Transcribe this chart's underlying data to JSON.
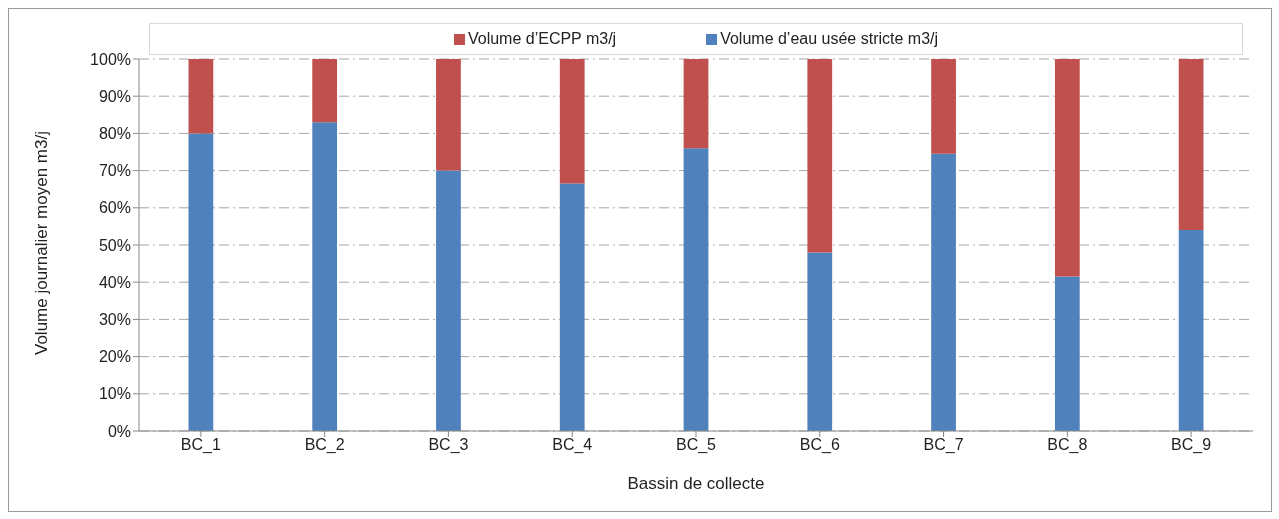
{
  "chart_data": {
    "type": "bar",
    "stacked": true,
    "xlabel": "Bassin de collecte",
    "ylabel": "Volume journalier moyen m3/j",
    "categories": [
      "BC_1",
      "BC_2",
      "BC_3",
      "BC_4",
      "BC_5",
      "BC_6",
      "BC_7",
      "BC_8",
      "BC_9"
    ],
    "series": [
      {
        "name": "Volume d’eau usée stricte m3/j",
        "color": "#4f81bd",
        "values": [
          80,
          83,
          70,
          66.5,
          76,
          48,
          74.5,
          41.5,
          54
        ]
      },
      {
        "name": "Volume d’ECPP m3/j",
        "color": "#c0504d",
        "values": [
          20,
          17,
          30,
          33.5,
          24,
          52,
          25.5,
          58.5,
          46
        ]
      }
    ],
    "ylim": [
      0,
      100
    ],
    "yticks": [
      {
        "value": 0,
        "label": "0%"
      },
      {
        "value": 10,
        "label": "10%"
      },
      {
        "value": 20,
        "label": "20%"
      },
      {
        "value": 30,
        "label": "30%"
      },
      {
        "value": 40,
        "label": "40%"
      },
      {
        "value": 50,
        "label": "50%"
      },
      {
        "value": 60,
        "label": "60%"
      },
      {
        "value": 70,
        "label": "70%"
      },
      {
        "value": 80,
        "label": "80%"
      },
      {
        "value": 90,
        "label": "90%"
      },
      {
        "value": 100,
        "label": "100%"
      }
    ],
    "grid": "y",
    "legend": "top"
  }
}
